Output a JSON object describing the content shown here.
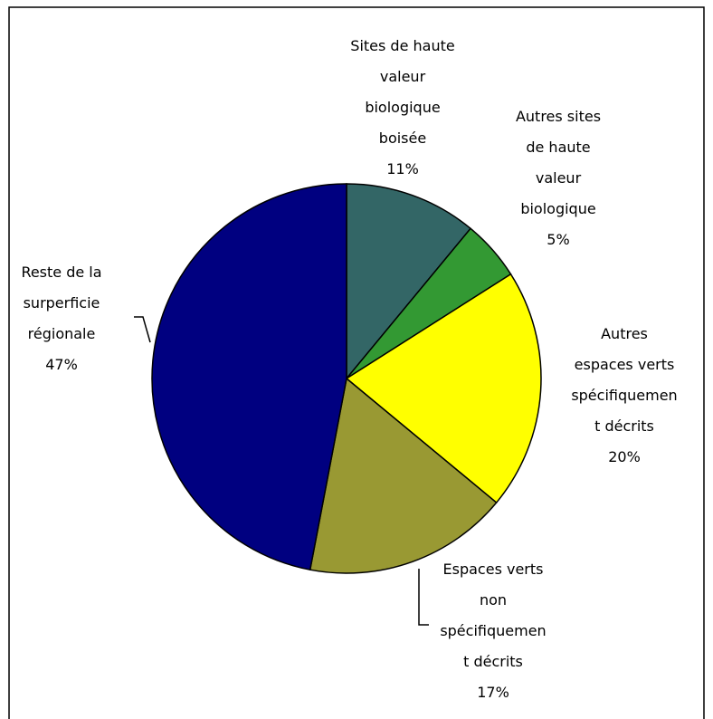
{
  "chart_data": {
    "type": "pie",
    "categories": [
      "Sites de haute\nvaleur\nbiologique\nboisée",
      "Autres sites\nde haute\nvaleur\nbiologique",
      "Autres\nespaces verts\nspécifiquemen\nt décrits",
      "Espaces verts\nnon\nspécifiquemen\nt décrits",
      "Reste de la\nsurperficie\nrégionale"
    ],
    "values": [
      11,
      5,
      20,
      17,
      47
    ],
    "value_labels": [
      "11%",
      "5%",
      "20%",
      "17%",
      "47%"
    ],
    "colors": [
      "#336666",
      "#339933",
      "#ffff00",
      "#999933",
      "#000080"
    ]
  }
}
